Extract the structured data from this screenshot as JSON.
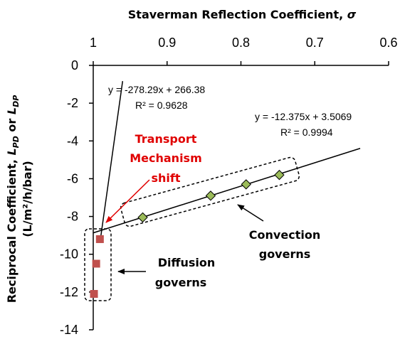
{
  "chart_data": {
    "type": "scatter",
    "xlabel": "Staverman Reflection Coefficient, σ",
    "xlabel_prefix": "Staverman Reflection Coefficient, ",
    "xlabel_symbol": "σ",
    "ylabel_line1_prefix": "Reciprocal Coefficient, ",
    "ylabel_line1_L1": "L",
    "ylabel_line1_sub1": "PD",
    "ylabel_line1_or": " or ",
    "ylabel_line1_L2": "L",
    "ylabel_line1_sub2": "DP",
    "ylabel_line2": "(L/m²/h/bar)",
    "x_axis_position": "top",
    "x_reversed": true,
    "xlim": [
      0.6,
      1.0
    ],
    "ylim": [
      -14,
      0
    ],
    "x_ticks": [
      "1",
      "0.9",
      "0.8",
      "0.7",
      "0.6"
    ],
    "y_ticks": [
      "0",
      "-2",
      "-4",
      "-6",
      "-8",
      "-10",
      "-12",
      "-14"
    ],
    "grid": false,
    "series": [
      {
        "marker": "square",
        "color": "#c0504d",
        "x": [
          0.991,
          0.996,
          0.999
        ],
        "y": [
          -9.2,
          -10.5,
          -12.1
        ]
      },
      {
        "marker": "diamond",
        "color": "#9bbb59",
        "x": [
          0.933,
          0.841,
          0.793,
          0.748
        ],
        "y": [
          -8.05,
          -6.9,
          -6.3,
          -5.8
        ]
      }
    ],
    "trendlines": [
      {
        "slope": -278.29,
        "intercept": 266.38,
        "x_range": [
          0.9602,
          0.9896
        ]
      },
      {
        "slope": -12.375,
        "intercept": 3.5069,
        "x_range": [
          0.6385,
          1.0
        ]
      }
    ],
    "annotations": {
      "eq1": "y = -278.29x + 266.38",
      "r2_1": "R² = 0.9628",
      "eq2": "y = -12.375x + 3.5069",
      "r2_2": "R² = 0.9994",
      "shift_1": "Transport",
      "shift_2": "Mechanism",
      "shift_3": "shift",
      "conv_1": "Convection",
      "conv_2": "governs",
      "diff_1": "Diffusion",
      "diff_2": "governs"
    },
    "colors": {
      "annotation_red": "#e00000",
      "square": "#c0504d",
      "diamond": "#9bbb59"
    }
  }
}
